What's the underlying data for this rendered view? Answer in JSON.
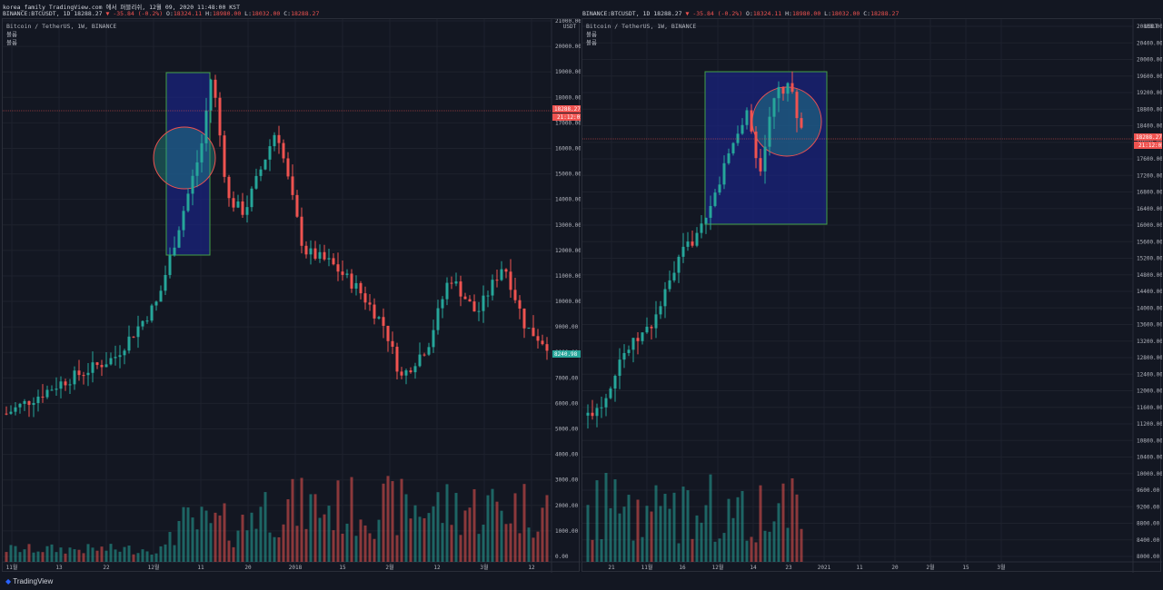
{
  "header": {
    "line1": "korea_family TradingView.com 에서 퍼블리쉬, 12월 09, 2020 11:48:00 KST",
    "symbol": "BINANCE:BTCUSDT, 1D 18288.27",
    "change": "▼ -35.84 (-0.2%)",
    "o_label": "O:",
    "o": "18324.11",
    "h_label": "H:",
    "h": "18980.00",
    "l_label": "L:",
    "l": "18032.00",
    "c_label": "C:",
    "c": "18288.27"
  },
  "left": {
    "legend_title": "Bitcoin / TetherUS, 1W, BINANCE",
    "legend_sub1": "볼륨",
    "legend_sub2": "볼륨",
    "unit": "USDT",
    "y_ticks": [
      "21000.00",
      "20000.00",
      "19000.00",
      "18000.00",
      "17000.00",
      "16000.00",
      "15000.00",
      "14000.00",
      "13000.00",
      "12000.00",
      "11000.00",
      "10000.00",
      "9000.00",
      "8000.00",
      "7000.00",
      "6000.00",
      "5000.00",
      "4000.00",
      "3000.00",
      "2000.00",
      "1000.00",
      "0.00"
    ],
    "x_ticks": [
      "11월",
      "13",
      "22",
      "12월",
      "11",
      "20",
      "2018",
      "15",
      "2월",
      "12",
      "3월",
      "12"
    ],
    "price_tag": "18288.27",
    "time_tag": "21:12:05",
    "low_tag": "8240.98"
  },
  "right": {
    "legend_title": "Bitcoin / TetherUS, 1W, BINANCE",
    "legend_sub1": "볼륨",
    "legend_sub2": "볼륨",
    "unit": "USDT",
    "y_ticks": [
      "20800.00",
      "20400.00",
      "20000.00",
      "19600.00",
      "19200.00",
      "18800.00",
      "18400.00",
      "18000.00",
      "17600.00",
      "17200.00",
      "16800.00",
      "16400.00",
      "16000.00",
      "15600.00",
      "15200.00",
      "14800.00",
      "14400.00",
      "14000.00",
      "13600.00",
      "13200.00",
      "12800.00",
      "12400.00",
      "12000.00",
      "11600.00",
      "11200.00",
      "10800.00",
      "10400.00",
      "10000.00",
      "9600.00",
      "9200.00",
      "8800.00",
      "8400.00",
      "8000.00"
    ],
    "x_ticks": [
      "21",
      "11월",
      "16",
      "12월",
      "14",
      "23",
      "2021",
      "11",
      "20",
      "2월",
      "15",
      "3월"
    ],
    "price_tag": "18288.27",
    "time_tag": "21:12:05"
  },
  "footer": {
    "brand": "TradingView"
  },
  "colors": {
    "up": "#26a69a",
    "down": "#ef5350",
    "box": "#1a237e",
    "box_border": "#43a047",
    "circle": "#26a69a"
  }
}
